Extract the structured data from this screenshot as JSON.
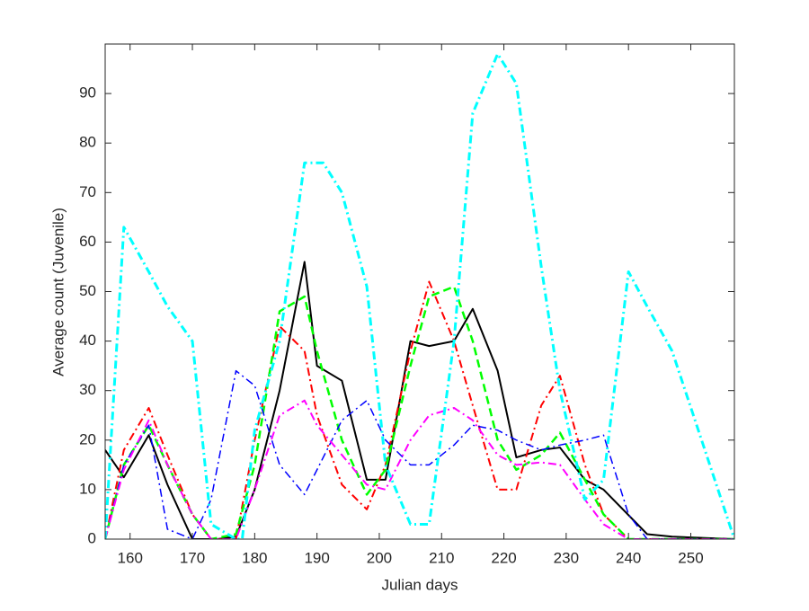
{
  "chart_data": {
    "type": "line",
    "xlabel": "Julian days",
    "ylabel": "Average count (Juvenile)",
    "xlim": [
      156,
      257
    ],
    "ylim": [
      0,
      100
    ],
    "xticks": [
      160,
      170,
      180,
      190,
      200,
      210,
      220,
      230,
      240,
      250
    ],
    "yticks": [
      0,
      10,
      20,
      30,
      40,
      50,
      60,
      70,
      80,
      90
    ],
    "series": [
      {
        "color": "#000000",
        "linestyle": "-",
        "linewidth": 2,
        "x": [
          156,
          159,
          163,
          166,
          170,
          174,
          177,
          180,
          184,
          188,
          190,
          194,
          198,
          201,
          205,
          208,
          212,
          215,
          219,
          222,
          226,
          229,
          233,
          236,
          243,
          247,
          257
        ],
        "values": [
          18,
          12.5,
          21,
          11,
          0,
          0,
          0.5,
          10,
          30,
          56,
          35,
          32,
          12,
          12,
          40,
          39,
          40,
          46.5,
          34,
          16.5,
          18,
          18.5,
          12,
          10,
          1,
          0.5,
          0
        ]
      },
      {
        "color": "#ff0000",
        "linestyle": "-.",
        "linewidth": 2,
        "x": [
          156,
          159,
          163,
          166,
          170,
          173,
          177,
          180,
          184,
          188,
          190,
          194,
          198,
          201,
          205,
          208,
          212,
          215,
          219,
          222,
          226,
          229,
          233,
          236,
          240,
          257
        ],
        "values": [
          0,
          18,
          26.5,
          17,
          5,
          0,
          0,
          20,
          43,
          38,
          25,
          11,
          6,
          15,
          38,
          52,
          40,
          27,
          10,
          10,
          27,
          33,
          15,
          5,
          0,
          0
        ]
      },
      {
        "color": "#00ff00",
        "linestyle": "--",
        "linewidth": 2.5,
        "x": [
          156,
          159,
          163,
          166,
          170,
          173,
          177,
          180,
          184,
          188,
          190,
          194,
          198,
          201,
          205,
          208,
          212,
          215,
          219,
          222,
          226,
          229,
          233,
          236,
          240,
          257
        ],
        "values": [
          0,
          15,
          23,
          15,
          5,
          0,
          1,
          15,
          46,
          49,
          38,
          20,
          9,
          14,
          35,
          49,
          51,
          40,
          20,
          14,
          17,
          21.5,
          12,
          5,
          0,
          0
        ]
      },
      {
        "color": "#0000ff",
        "linestyle": "-.",
        "linewidth": 1.5,
        "x": [
          156,
          159,
          163,
          166,
          170,
          173,
          177,
          180,
          184,
          188,
          190,
          194,
          198,
          201,
          205,
          208,
          212,
          215,
          219,
          222,
          226,
          229,
          233,
          236,
          240,
          243,
          257
        ],
        "values": [
          0,
          15,
          23,
          2,
          0,
          8,
          34,
          31,
          15,
          9,
          14,
          24,
          28,
          20,
          15,
          15,
          19,
          23,
          22,
          20,
          18,
          19,
          20,
          21,
          5,
          0,
          0
        ]
      },
      {
        "color": "#ff00ff",
        "linestyle": "-.",
        "linewidth": 2,
        "x": [
          156,
          159,
          163,
          166,
          170,
          173,
          177,
          180,
          184,
          188,
          190,
          194,
          198,
          201,
          205,
          208,
          212,
          215,
          219,
          222,
          226,
          229,
          233,
          236,
          240,
          257
        ],
        "values": [
          0,
          14,
          24,
          15,
          5,
          0,
          0,
          10,
          25,
          28,
          23,
          17,
          11,
          10,
          20,
          25,
          26.5,
          24,
          17,
          15,
          15.5,
          15,
          8,
          3,
          0,
          0
        ]
      },
      {
        "color": "#00ffff",
        "linestyle": "-.",
        "linewidth": 3,
        "x": [
          156,
          159,
          163,
          166,
          170,
          173,
          177,
          178,
          180,
          184,
          188,
          191,
          194,
          198,
          201,
          205,
          208,
          212,
          215,
          219,
          222,
          226,
          229,
          233,
          236,
          240,
          243,
          247,
          257
        ],
        "values": [
          0,
          63,
          54,
          47,
          40,
          3,
          0,
          0,
          22,
          40,
          76,
          76,
          70,
          51,
          15,
          3,
          3,
          40,
          86,
          98,
          92,
          55,
          30,
          8,
          12,
          54,
          47,
          38,
          0
        ]
      }
    ]
  }
}
